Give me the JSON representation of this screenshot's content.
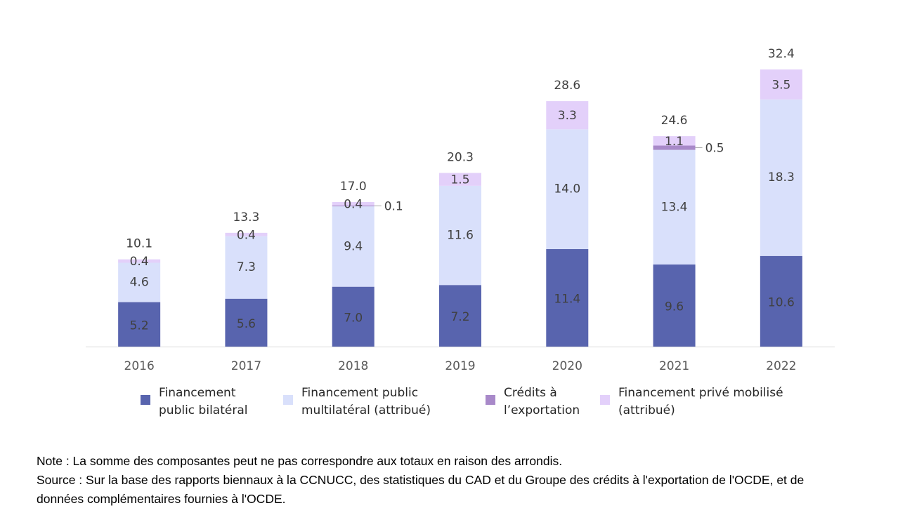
{
  "chart_data": {
    "type": "bar",
    "stacked": true,
    "categories": [
      "2016",
      "2017",
      "2018",
      "2019",
      "2020",
      "2021",
      "2022"
    ],
    "series": [
      {
        "name": "Financement public bilatéral",
        "color": "#5864ae",
        "values": [
          5.2,
          5.6,
          7.0,
          7.2,
          11.4,
          9.6,
          10.6
        ]
      },
      {
        "name": "Financement public multilatéral (attribué)",
        "color": "#d9e0fb",
        "values": [
          4.6,
          7.3,
          9.4,
          11.6,
          14.0,
          13.4,
          18.3
        ]
      },
      {
        "name": "Crédits à l’exportation",
        "color": "#a889c9",
        "values": [
          0.0,
          0.0,
          0.1,
          0.0,
          0.0,
          0.5,
          0.0
        ]
      },
      {
        "name": "Financement privé mobilisé (attribué)",
        "color": "#e3d0fa",
        "values": [
          0.4,
          0.4,
          0.4,
          1.5,
          3.3,
          1.1,
          3.5
        ]
      }
    ],
    "totals": [
      10.1,
      13.3,
      17.0,
      20.3,
      28.6,
      24.6,
      32.4
    ],
    "data_labels": {
      "bilateral": [
        "5.2",
        "5.6",
        "7.0",
        "7.2",
        "11.4",
        "9.6",
        "10.6"
      ],
      "multilateral": [
        "4.6",
        "7.3",
        "9.4",
        "11.6",
        "14.0",
        "13.4",
        "18.3"
      ],
      "private": [
        "0.4",
        "0.4",
        "0.4",
        "1.5",
        "3.3",
        "1.1",
        "3.5"
      ],
      "totals": [
        "10.1",
        "13.3",
        "17.0",
        "20.3",
        "28.6",
        "24.6",
        "32.4"
      ],
      "export_callouts": [
        {
          "category": "2018",
          "value": 0.1,
          "label": "0.1"
        },
        {
          "category": "2021",
          "value": 0.5,
          "label": "0.5"
        }
      ]
    },
    "ylim": [
      0,
      34
    ],
    "grid": false,
    "legend_position": "bottom"
  },
  "legend": [
    {
      "text": "Financement\npublic bilatéral",
      "color": "#5864ae"
    },
    {
      "text": "Financement public\nmultilatéral (attribué)",
      "color": "#d9e0fb"
    },
    {
      "text": "Crédits à\nl’exportation",
      "color": "#a889c9"
    },
    {
      "text": "Financement privé mobilisé\n(attribué)",
      "color": "#e3d0fa"
    }
  ],
  "notes": {
    "note": "Note : La somme des composantes peut ne pas correspondre aux totaux en raison des arrondis.",
    "source_line1": "Source : Sur la base des rapports biennaux à la CCNUCC, des statistiques du CAD et du Groupe des crédits à l'exportation de l'OCDE, et de",
    "source_line2": "données complémentaires fournies à l'OCDE."
  }
}
